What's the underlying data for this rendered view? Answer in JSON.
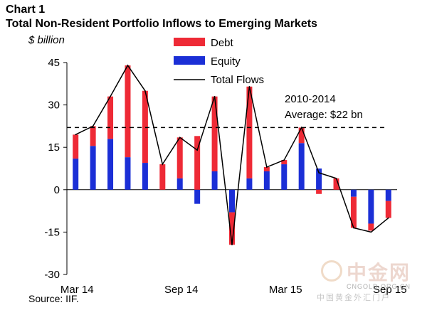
{
  "header": {
    "chart_number": "Chart 1",
    "title": "Total Non-Resident Portfolio Inflows to Emerging Markets",
    "unit": "$ billion"
  },
  "footer": {
    "source": "Source: IIF."
  },
  "watermark": {
    "cn": "中金网",
    "en": "CNGOLD.ORG.CN",
    "sub": "中国黄金外汇门户"
  },
  "colors": {
    "debt": "#ee2a36",
    "equity": "#1b2fd6",
    "total": "#000000",
    "average": "#000000"
  },
  "chart_data": {
    "type": "bar",
    "stacked": true,
    "title": "Total Non-Resident Portfolio Inflows to Emerging Markets",
    "ylabel": "$ billion",
    "ylim": [
      -30,
      45
    ],
    "yticks": [
      45,
      30,
      15,
      0,
      -15,
      -30
    ],
    "grid": false,
    "legend_position": "top-center",
    "categories": [
      "Mar 14",
      "Apr 14",
      "May 14",
      "Jun 14",
      "Jul 14",
      "Aug 14",
      "Sep 14",
      "Oct 14",
      "Nov 14",
      "Dec 14",
      "Jan 15",
      "Feb 15",
      "Mar 15",
      "Apr 15",
      "May 15",
      "Jun 15",
      "Jul 15",
      "Aug 15",
      "Sep 15"
    ],
    "xtick_labels": [
      {
        "index": 0,
        "label": "Mar 14"
      },
      {
        "index": 6,
        "label": "Sep 14"
      },
      {
        "index": 12,
        "label": "Mar 15"
      },
      {
        "index": 18,
        "label": "Sep 15"
      }
    ],
    "series": [
      {
        "name": "Equity",
        "color": "#1b2fd6",
        "values": [
          11,
          15.5,
          18,
          11.5,
          9.5,
          0,
          4,
          -5,
          6.5,
          -8,
          4,
          6.5,
          9,
          16.5,
          7.5,
          0,
          -2.5,
          -12,
          -4
        ]
      },
      {
        "name": "Debt",
        "color": "#ee2a36",
        "values": [
          8.5,
          7,
          15,
          32.5,
          25.5,
          9,
          14.5,
          19,
          26.5,
          -11.5,
          32.5,
          1.5,
          1.5,
          5.5,
          -1.5,
          4,
          -11,
          -2.5,
          -6
        ]
      },
      {
        "name": "Total Flows",
        "type": "line",
        "color": "#000000",
        "values": [
          19.5,
          22.5,
          33,
          44,
          35,
          9,
          18.5,
          14,
          33,
          -19.5,
          36.5,
          8,
          10.5,
          22,
          6,
          4,
          -13.5,
          -15,
          -10
        ]
      }
    ],
    "reference_line": {
      "value": 22,
      "style": "dashed"
    },
    "annotations": [
      {
        "text": "2010-2014"
      },
      {
        "text": "Average: $22 bn"
      }
    ]
  }
}
